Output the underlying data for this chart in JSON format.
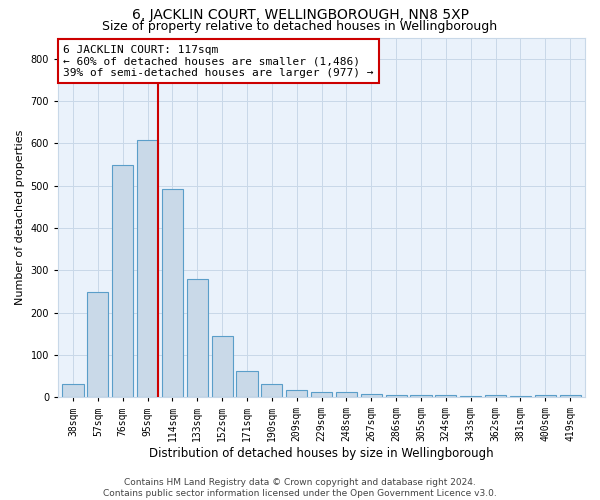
{
  "title": "6, JACKLIN COURT, WELLINGBOROUGH, NN8 5XP",
  "subtitle": "Size of property relative to detached houses in Wellingborough",
  "xlabel": "Distribution of detached houses by size in Wellingborough",
  "ylabel": "Number of detached properties",
  "categories": [
    "38sqm",
    "57sqm",
    "76sqm",
    "95sqm",
    "114sqm",
    "133sqm",
    "152sqm",
    "171sqm",
    "190sqm",
    "209sqm",
    "229sqm",
    "248sqm",
    "267sqm",
    "286sqm",
    "305sqm",
    "324sqm",
    "343sqm",
    "362sqm",
    "381sqm",
    "400sqm",
    "419sqm"
  ],
  "values": [
    30,
    248,
    548,
    607,
    493,
    280,
    145,
    62,
    30,
    18,
    13,
    12,
    8,
    5,
    5,
    5,
    3,
    5,
    3,
    5,
    5
  ],
  "bar_color": "#c9d9e8",
  "bar_edge_color": "#5a9ec9",
  "highlight_bar_index": 3,
  "highlight_line_color": "#cc0000",
  "annotation_text": "6 JACKLIN COURT: 117sqm\n← 60% of detached houses are smaller (1,486)\n39% of semi-detached houses are larger (977) →",
  "annotation_box_color": "white",
  "annotation_box_edge_color": "#cc0000",
  "ylim": [
    0,
    850
  ],
  "yticks": [
    0,
    100,
    200,
    300,
    400,
    500,
    600,
    700,
    800
  ],
  "grid_color": "#c8d8e8",
  "background_color": "#eaf2fb",
  "footer_line1": "Contains HM Land Registry data © Crown copyright and database right 2024.",
  "footer_line2": "Contains public sector information licensed under the Open Government Licence v3.0.",
  "title_fontsize": 10,
  "subtitle_fontsize": 9,
  "tick_fontsize": 7,
  "xlabel_fontsize": 8.5,
  "ylabel_fontsize": 8,
  "footer_fontsize": 6.5,
  "annotation_fontsize": 8
}
